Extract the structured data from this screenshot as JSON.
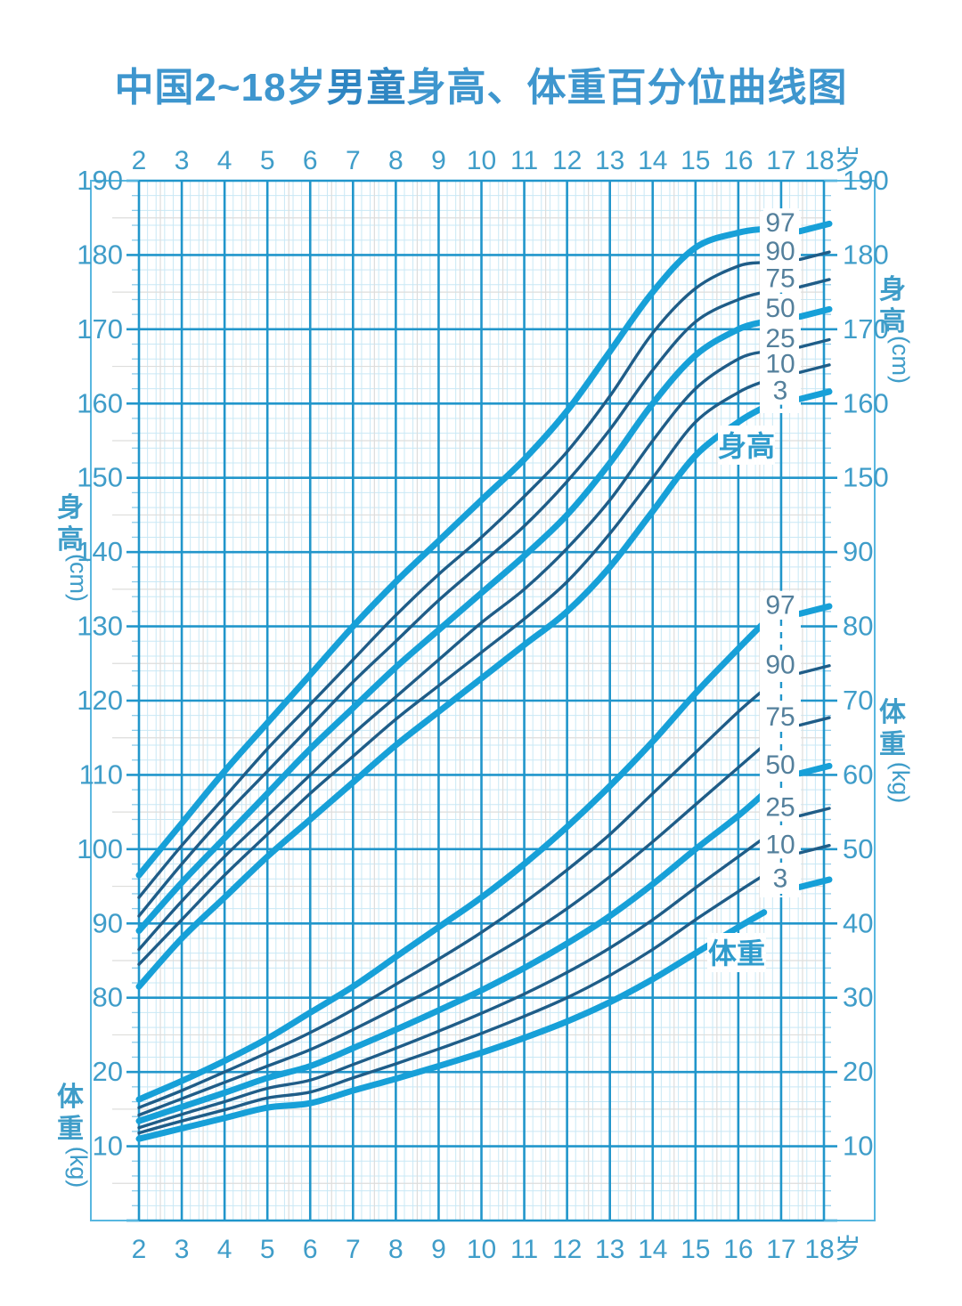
{
  "title": {
    "prefix": "中国2~18岁",
    "bold": "男童",
    "suffix": "身高、体重百分位曲线图"
  },
  "axis_labels": {
    "height_unit_chars": [
      "身",
      "高"
    ],
    "height_unit": "(cm)",
    "weight_unit_chars": [
      "体",
      "重"
    ],
    "weight_unit": "(kg)",
    "last_age_suffix": "岁"
  },
  "in_chart_labels": {
    "height": "身高",
    "weight": "体重"
  },
  "colors": {
    "emphasis_curve": "#17a0d8",
    "regular_curve": "#1f5d88",
    "major_grid": "#2196cb",
    "minor_grid": "#c9e8f5",
    "half_grid": "#dddddc",
    "frame": "#58b7e0",
    "tick_text": "#3f9dc9",
    "percentile_text": "#54809c",
    "title_text": "#3e96ce"
  },
  "chart_data": {
    "type": "line",
    "title": "中国2~18岁男童身高、体重百分位曲线图",
    "x_axis": {
      "label": "age (years)",
      "ticks_top": [
        "2",
        "3",
        "4",
        "5",
        "6",
        "7",
        "8",
        "9",
        "10",
        "11",
        "12",
        "13",
        "14",
        "15",
        "16",
        "17",
        "18岁"
      ],
      "ticks_bottom": [
        "2",
        "3",
        "4",
        "5",
        "6",
        "7",
        "8",
        "9",
        "10",
        "11",
        "12",
        "13",
        "14",
        "15",
        "16",
        "17",
        "18岁"
      ],
      "range": [
        2,
        18
      ],
      "minor_step_years": 0.2
    },
    "y_axis": {
      "left_height_ticks": [
        190,
        180,
        170,
        160,
        150,
        140,
        130,
        120,
        110,
        100,
        90,
        80
      ],
      "left_weight_ticks": [
        20,
        10
      ],
      "right_height_ticks": [
        190,
        180,
        170,
        160,
        150
      ],
      "right_weight_ticks": [
        90,
        80,
        70,
        60,
        50,
        40,
        30,
        20,
        10
      ],
      "height_label": "身高(cm)",
      "weight_label": "体重(kg)",
      "height_range_cm": [
        50,
        190
      ],
      "weight_range_kg": [
        0,
        140
      ],
      "minor_step_units": 2,
      "grid": "on"
    },
    "legend_position": "right-inline",
    "percentile_labels": [
      "97",
      "90",
      "75",
      "50",
      "25",
      "10",
      "3"
    ],
    "ages": [
      2,
      3,
      4,
      5,
      6,
      7,
      8,
      9,
      10,
      11,
      12,
      13,
      14,
      15,
      16,
      16.6
    ],
    "height_series": [
      {
        "name": "97",
        "emphasis": true,
        "values": [
          96.5,
          103.5,
          110.5,
          117,
          123.5,
          130,
          136,
          141.5,
          147,
          152.5,
          159,
          167,
          175,
          181,
          183,
          183.5
        ],
        "end18": 184
      },
      {
        "name": "90",
        "emphasis": false,
        "values": [
          93.5,
          100.5,
          107,
          113.5,
          119.5,
          125.5,
          131.5,
          137,
          142,
          147.5,
          153.5,
          161,
          169.5,
          175.5,
          178.5,
          179
        ],
        "end18": 180.2
      },
      {
        "name": "75",
        "emphasis": false,
        "values": [
          91,
          98,
          104.5,
          110.5,
          116.5,
          122.5,
          128,
          133.5,
          138.5,
          143.5,
          149.5,
          156.5,
          164.5,
          171,
          174,
          175
        ],
        "end18": 176.5
      },
      {
        "name": "50",
        "emphasis": true,
        "values": [
          89,
          95.5,
          101.5,
          107.5,
          113.5,
          119,
          124.5,
          129.5,
          134.5,
          139.5,
          145,
          152,
          160,
          166.5,
          170,
          171
        ],
        "end18": 172.5
      },
      {
        "name": "25",
        "emphasis": false,
        "values": [
          86.5,
          93,
          99,
          104.5,
          110,
          115.5,
          120.5,
          125.5,
          130.5,
          135,
          140.5,
          147,
          155,
          162,
          166,
          167
        ],
        "end18": 168.4
      },
      {
        "name": "10",
        "emphasis": false,
        "values": [
          84.5,
          90.5,
          96.5,
          102,
          107.5,
          112.5,
          117.5,
          122,
          126.5,
          131,
          136,
          142.5,
          150,
          157.5,
          161.5,
          163
        ],
        "end18": 165
      },
      {
        "name": "3",
        "emphasis": true,
        "values": [
          81.5,
          88,
          93.5,
          99,
          104,
          109,
          114,
          118.5,
          123,
          127.5,
          132,
          138,
          145.5,
          153,
          157.5,
          159.5
        ],
        "end18": 161.4
      }
    ],
    "weight_series": [
      {
        "name": "97",
        "emphasis": true,
        "values": [
          16.3,
          18.8,
          21.5,
          24.5,
          28,
          31.5,
          35.5,
          39.5,
          43.5,
          48,
          53,
          58.5,
          64.5,
          71,
          77,
          80.5
        ],
        "end18": 82.5
      },
      {
        "name": "90",
        "emphasis": false,
        "values": [
          15.2,
          17.5,
          20,
          22.6,
          25.3,
          28.4,
          31.8,
          35.2,
          38.8,
          42.8,
          47.2,
          52,
          57.5,
          63,
          68.5,
          71.5
        ],
        "end18": 74.5
      },
      {
        "name": "75",
        "emphasis": false,
        "values": [
          14.2,
          16.4,
          18.6,
          20.8,
          23,
          25.7,
          28.6,
          31.6,
          34.8,
          38.2,
          42,
          46.3,
          51,
          56,
          61,
          64
        ],
        "end18": 67.5
      },
      {
        "name": "50",
        "emphasis": true,
        "values": [
          13.4,
          15.3,
          17.2,
          19.2,
          20.8,
          23.2,
          25.7,
          28.3,
          31,
          34,
          37.3,
          41,
          45.3,
          50,
          54.5,
          57.5
        ],
        "end18": 61
      },
      {
        "name": "25",
        "emphasis": false,
        "values": [
          12.5,
          14.3,
          16,
          17.8,
          18.9,
          21,
          23.2,
          25.5,
          27.9,
          30.5,
          33.4,
          36.7,
          40.5,
          44.8,
          49,
          51.5
        ],
        "end18": 55.3
      },
      {
        "name": "10",
        "emphasis": false,
        "values": [
          11.8,
          13.4,
          14.9,
          16.5,
          17.3,
          19.2,
          21.1,
          23.1,
          25.2,
          27.5,
          30,
          33,
          36.5,
          40.5,
          44.3,
          46.5
        ],
        "end18": 50.3
      },
      {
        "name": "3",
        "emphasis": true,
        "values": [
          11.0,
          12.4,
          13.8,
          15.2,
          15.8,
          17.5,
          19.1,
          20.8,
          22.6,
          24.6,
          26.8,
          29.4,
          32.5,
          36,
          39.5,
          41.5
        ],
        "end18": 45.7
      }
    ]
  }
}
